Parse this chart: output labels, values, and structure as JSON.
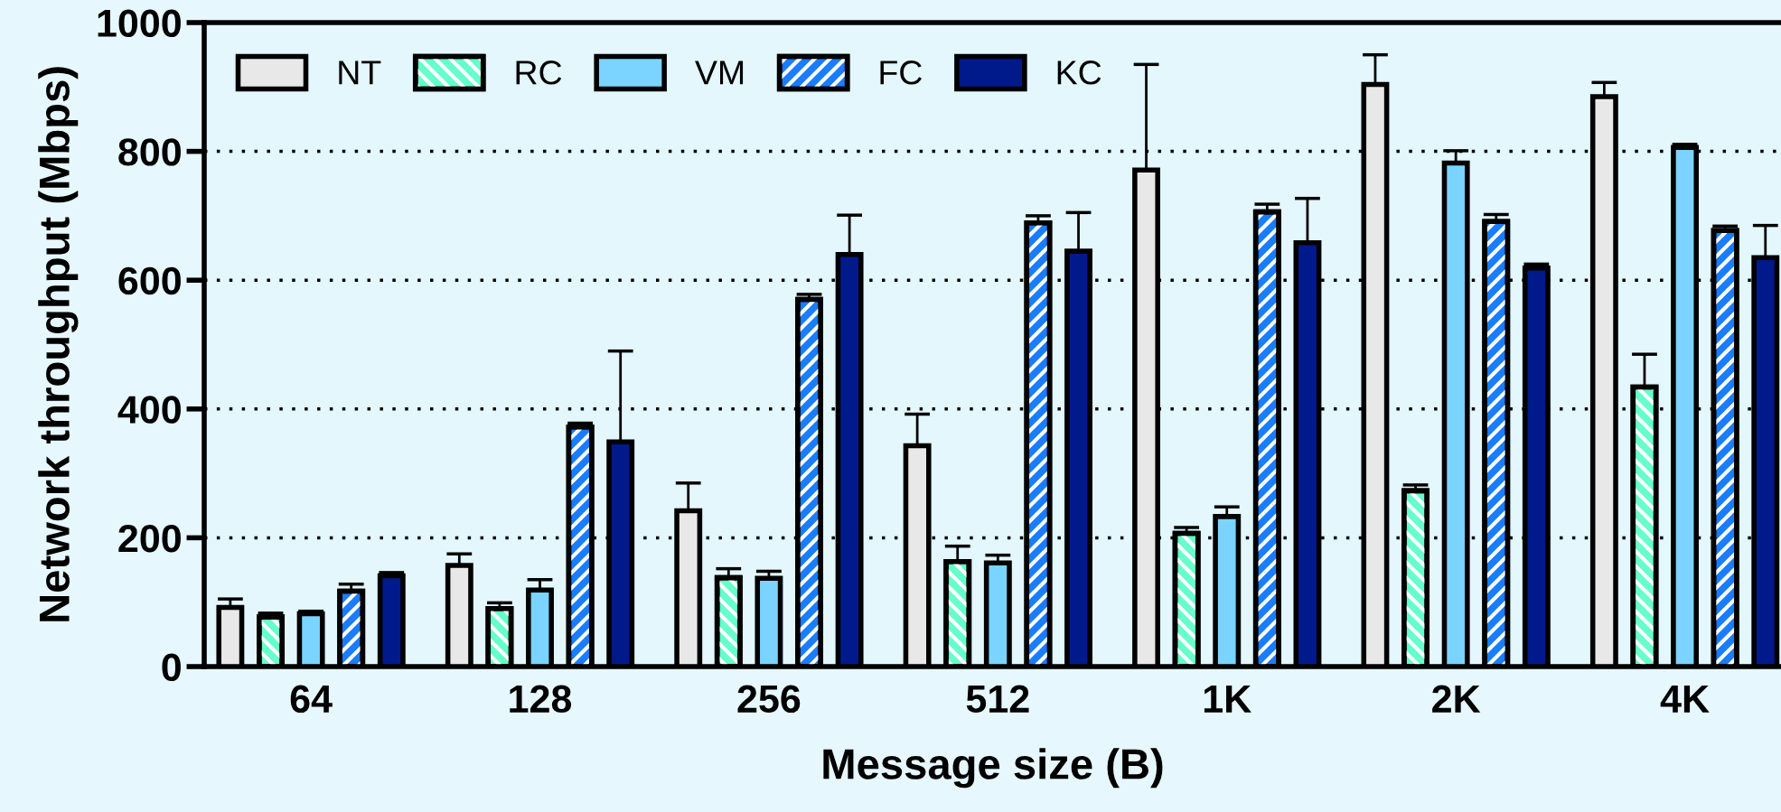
{
  "chart_data": {
    "type": "bar",
    "xlabel": "Message size (B)",
    "ylabel": "Network throughput (Mbps)",
    "categories": [
      "64",
      "128",
      "256",
      "512",
      "1K",
      "2K",
      "4K"
    ],
    "series": [
      {
        "name": "NT",
        "color": "#e8e8e8",
        "values": [
          92,
          157,
          242,
          343,
          771,
          904,
          885
        ],
        "errors": [
          [
            92,
            105
          ],
          [
            157,
            175
          ],
          [
            242,
            285
          ],
          [
            343,
            392
          ],
          [
            771,
            935
          ],
          [
            904,
            950
          ],
          [
            885,
            907
          ]
        ]
      },
      {
        "name": "RC",
        "color": "#66ffcc",
        "values": [
          77,
          90,
          138,
          163,
          207,
          273,
          434
        ],
        "errors": [
          [
            77,
            83
          ],
          [
            90,
            99
          ],
          [
            138,
            152
          ],
          [
            163,
            187
          ],
          [
            207,
            216
          ],
          [
            273,
            282
          ],
          [
            434,
            485
          ]
        ]
      },
      {
        "name": "VM",
        "color": "#7ad4ff",
        "values": [
          82,
          119,
          137,
          161,
          233,
          782,
          806
        ],
        "errors": [
          [
            82,
            86
          ],
          [
            119,
            135
          ],
          [
            137,
            148
          ],
          [
            161,
            173
          ],
          [
            233,
            248
          ],
          [
            782,
            801
          ],
          [
            806,
            811
          ]
        ]
      },
      {
        "name": "FC",
        "color": "#1a7dff",
        "values": [
          117,
          372,
          570,
          689,
          706,
          691,
          677
        ],
        "errors": [
          [
            117,
            128
          ],
          [
            372,
            378
          ],
          [
            570,
            578
          ],
          [
            689,
            700
          ],
          [
            706,
            718
          ],
          [
            691,
            702
          ],
          [
            677,
            684
          ]
        ]
      },
      {
        "name": "KC",
        "color": "#001a8c",
        "values": [
          141,
          349,
          640,
          645,
          658,
          619,
          635
        ],
        "errors": [
          [
            141,
            146
          ],
          [
            349,
            490
          ],
          [
            640,
            701
          ],
          [
            645,
            705
          ],
          [
            658,
            727
          ],
          [
            619,
            625
          ],
          [
            635,
            685
          ]
        ]
      }
    ],
    "ylim": [
      0,
      1000
    ],
    "yticks": [
      0,
      200,
      400,
      600,
      800,
      1000
    ],
    "grid": "y",
    "legend": "top left"
  }
}
